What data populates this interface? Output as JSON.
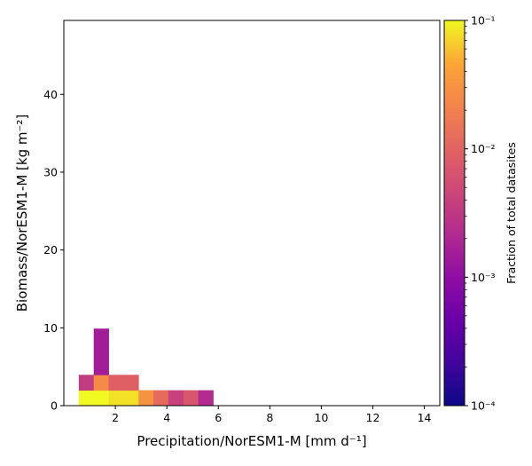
{
  "chart_data": {
    "type": "heatmap",
    "title": "",
    "xlabel": "Precipitation/NorESM1-M [mm d⁻¹]",
    "ylabel": "Biomass/NorESM1-M [kg m⁻²]",
    "xlim": [
      0.0,
      14.6
    ],
    "ylim": [
      0,
      49.5
    ],
    "x_ticks": [
      2,
      4,
      6,
      8,
      10,
      12,
      14
    ],
    "y_ticks": [
      0,
      10,
      20,
      30,
      40
    ],
    "grid": false,
    "colorbar": {
      "label": "Fraction of total datasites",
      "scale": "log",
      "range": [
        0.0001,
        0.1
      ],
      "colormap": "plasma",
      "ticks": [
        {
          "value": 0.1,
          "label": "10⁻¹"
        },
        {
          "value": 0.01,
          "label": "10⁻²"
        },
        {
          "value": 0.001,
          "label": "10⁻³"
        },
        {
          "value": 0.0001,
          "label": "10⁻⁴"
        }
      ]
    },
    "bin_width_x": 0.58,
    "bin_height_y": 1.98,
    "cells": [
      {
        "x0": 0.58,
        "y0": 0.0,
        "value": 0.1
      },
      {
        "x0": 1.16,
        "y0": 0.0,
        "value": 0.1
      },
      {
        "x0": 1.74,
        "y0": 0.0,
        "value": 0.08
      },
      {
        "x0": 2.32,
        "y0": 0.0,
        "value": 0.08
      },
      {
        "x0": 2.9,
        "y0": 0.0,
        "value": 0.03
      },
      {
        "x0": 3.48,
        "y0": 0.0,
        "value": 0.012
      },
      {
        "x0": 4.06,
        "y0": 0.0,
        "value": 0.004
      },
      {
        "x0": 4.64,
        "y0": 0.0,
        "value": 0.007
      },
      {
        "x0": 5.22,
        "y0": 0.0,
        "value": 0.0022
      },
      {
        "x0": 0.58,
        "y0": 1.98,
        "value": 0.0035
      },
      {
        "x0": 1.16,
        "y0": 1.98,
        "value": 0.025
      },
      {
        "x0": 1.74,
        "y0": 1.98,
        "value": 0.009
      },
      {
        "x0": 2.32,
        "y0": 1.98,
        "value": 0.009
      },
      {
        "x0": 1.16,
        "y0": 3.96,
        "value": 0.0015
      },
      {
        "x0": 1.16,
        "y0": 5.94,
        "value": 0.0015
      },
      {
        "x0": 1.16,
        "y0": 7.92,
        "value": 0.0015
      }
    ]
  }
}
